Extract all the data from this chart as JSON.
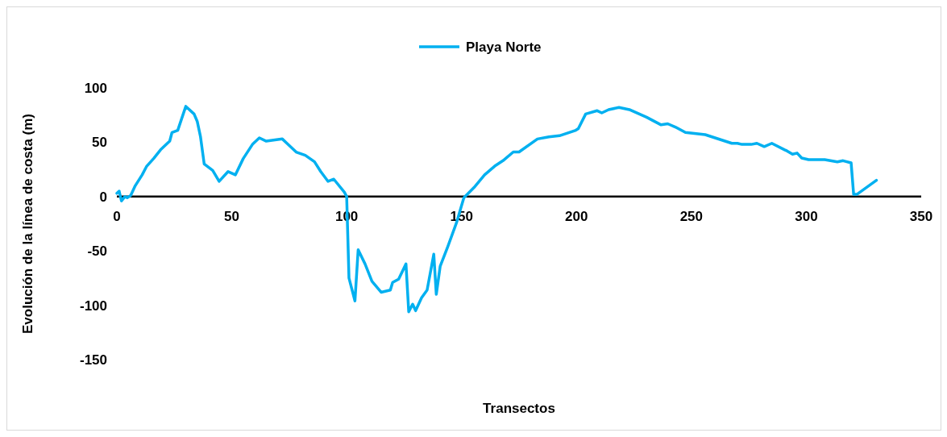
{
  "chart_data": {
    "type": "line",
    "xlabel": "Transectos",
    "ylabel": "Evolución de la línea de costa (m)",
    "xlim": [
      0,
      350
    ],
    "xticks": [
      0,
      50,
      100,
      150,
      200,
      250,
      300,
      350
    ],
    "ylim": [
      -150,
      100
    ],
    "yticks": [
      -150,
      -100,
      -50,
      0,
      50,
      100
    ],
    "legend": "top",
    "grid": false,
    "line_style": "solid",
    "series": [
      {
        "name": "Playa Norte",
        "color": "#00b0f0",
        "x": [
          0,
          1,
          2,
          3.5,
          4.5,
          6,
          8,
          11,
          13,
          16,
          19,
          23,
          24,
          26.5,
          30,
          33.6,
          35,
          36.4,
          38,
          41.7,
          44.5,
          48.4,
          51.6,
          55,
          59,
          62,
          65,
          72,
          74,
          78,
          82,
          86,
          88.7,
          91.9,
          94.4,
          99,
          100,
          101,
          103.6,
          105,
          108,
          111,
          115,
          119,
          120,
          122.6,
          125.8,
          127,
          128.7,
          130,
          132.6,
          135,
          137.9,
          139,
          140.7,
          144,
          147.8,
          151,
          155.5,
          160,
          164.4,
          168,
          172.5,
          175,
          183,
          188,
          192.6,
          199.7,
          200.8,
          204,
          209,
          211,
          214,
          218.5,
          223,
          230.5,
          236.8,
          239.7,
          243,
          247.4,
          256,
          267.6,
          270,
          272,
          276,
          278.5,
          281.7,
          285,
          290.6,
          291.6,
          294,
          296,
          298,
          301,
          308,
          313.5,
          316,
          319.5,
          320.6,
          322,
          330.5
        ],
        "values": [
          3,
          5,
          -4,
          0,
          -1,
          1,
          10,
          20,
          28,
          35,
          43,
          51,
          59,
          61,
          83,
          76,
          69,
          55,
          30,
          24,
          14,
          23,
          20,
          35,
          48,
          54,
          51,
          53,
          49,
          41,
          38,
          32,
          23,
          14,
          16,
          4,
          0,
          -75,
          -96,
          -49,
          -62,
          -78,
          -88,
          -86,
          -79,
          -76,
          -62,
          -106,
          -99,
          -105,
          -93,
          -86,
          -53,
          -90,
          -64,
          -46,
          -24,
          -1,
          8.5,
          20,
          28,
          33,
          41,
          41,
          53,
          55,
          56,
          61,
          62.5,
          76,
          79,
          77,
          80,
          82,
          80,
          73,
          66,
          67,
          64,
          59,
          57,
          49,
          49,
          48,
          48,
          49,
          46,
          49,
          43,
          42,
          39,
          40,
          35.5,
          34,
          34,
          32,
          33,
          31,
          2,
          2,
          15
        ]
      }
    ]
  }
}
